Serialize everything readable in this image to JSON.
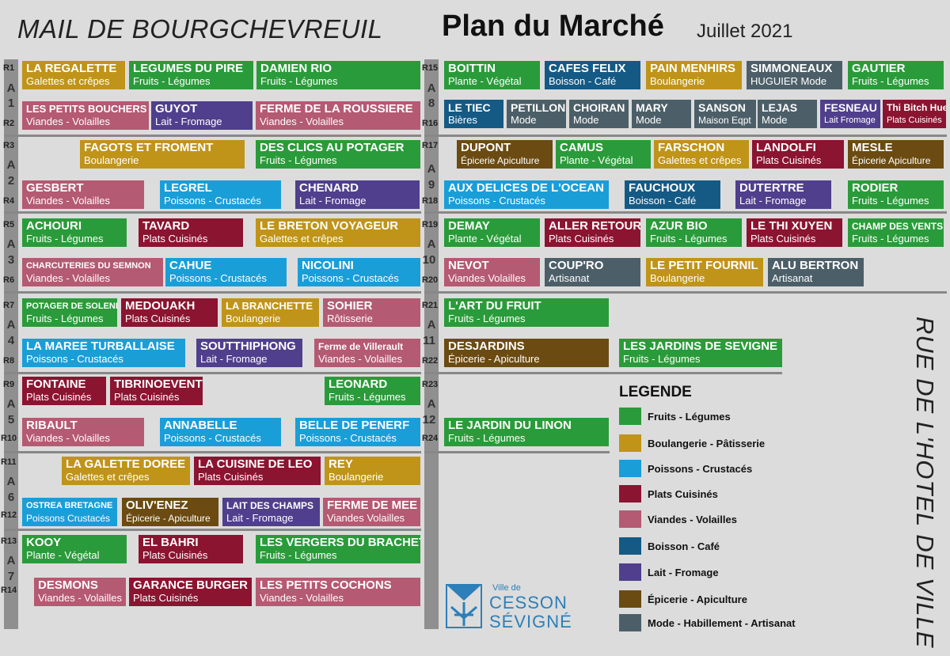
{
  "header": {
    "left": "MAIL DE BOURGCHEVREUIL",
    "title": "Plan du Marché",
    "date": "Juillet 2021"
  },
  "street": "RUE DE L'HOTEL DE VILLE",
  "logo": {
    "small": "Ville de",
    "line1": "CESSON",
    "line2": "SÉVIGNÉ"
  },
  "rows": {
    "R1": "R1",
    "R2": "R2",
    "R3": "R3",
    "R4": "R4",
    "R5": "R5",
    "R6": "R6",
    "R7": "R7",
    "R8": "R8",
    "R9": "R9",
    "R10": "R10",
    "R11": "R11",
    "R12": "R12",
    "R13": "R13",
    "R14": "R14",
    "R15": "R15",
    "R16": "R16",
    "R17": "R17",
    "R18": "R18",
    "R19": "R19",
    "R20": "R20",
    "R21": "R21",
    "R22": "R22",
    "R23": "R23",
    "R24": "R24"
  },
  "aisles": {
    "a1": "A",
    "n1": "1",
    "a2": "A",
    "n2": "2",
    "a3": "A",
    "n3": "3",
    "a4": "A",
    "n4": "4",
    "a5": "A",
    "n5": "5",
    "a6": "A",
    "n6": "6",
    "a7": "A",
    "n7": "7",
    "a8": "A",
    "n8": "8",
    "a9": "A",
    "n9": "9",
    "a10": "A",
    "n10": "10",
    "a11": "A",
    "n11": "11",
    "a12": "A",
    "n12": "12"
  },
  "stalls": {
    "regalette": {
      "name": "LA REGALETTE",
      "type": "Galettes et crêpes"
    },
    "pire": {
      "name": "LEGUMES DU PIRE",
      "type": "Fruits - Légumes"
    },
    "rio": {
      "name": "DAMIEN RIO",
      "type": "Fruits - Légumes"
    },
    "bouchers": {
      "name": "LES PETITS BOUCHERS",
      "type": "Viandes - Volailles"
    },
    "guyot": {
      "name": "GUYOT",
      "type": "Lait - Fromage"
    },
    "roussiere": {
      "name": "FERME DE LA ROUSSIERE",
      "type": "Viandes - Volailles"
    },
    "fagots": {
      "name": "FAGOTS ET FROMENT",
      "type": "Boulangerie"
    },
    "clics": {
      "name": "DES CLICS AU POTAGER",
      "type": "Fruits - Légumes"
    },
    "gesbert": {
      "name": "GESBERT",
      "type": "Viandes - Volailles"
    },
    "legrel": {
      "name": "LEGREL",
      "type": "Poissons - Crustacés"
    },
    "chenard": {
      "name": "CHENARD",
      "type": "Lait - Fromage"
    },
    "achouri": {
      "name": "ACHOURI",
      "type": "Fruits - Légumes"
    },
    "tavard": {
      "name": "TAVARD",
      "type": "Plats Cuisinés"
    },
    "breton": {
      "name": "LE BRETON VOYAGEUR",
      "type": "Galettes et crêpes"
    },
    "semnon": {
      "name": "CHARCUTERIES DU SEMNON",
      "type": "Viandes - Volailles"
    },
    "cahue": {
      "name": "CAHUE",
      "type": "Poissons - Crustacés"
    },
    "nicolini": {
      "name": "NICOLINI",
      "type": "Poissons - Crustacés"
    },
    "solenn": {
      "name": "POTAGER DE SOLENN",
      "type": "Fruits - Légumes"
    },
    "medouakh": {
      "name": "MEDOUAKH",
      "type": "Plats Cuisinés"
    },
    "branchette": {
      "name": "LA BRANCHETTE",
      "type": "Boulangerie"
    },
    "sohier": {
      "name": "SOHIER",
      "type": "Rôtisserie"
    },
    "maree": {
      "name": "LA MAREE TURBALLAISE",
      "type": "Poissons - Crustacés"
    },
    "southi": {
      "name": "SOUTTHIPHONG",
      "type": "Lait - Fromage"
    },
    "villerault": {
      "name": "Ferme de Villerault",
      "type": "Viandes - Volailles"
    },
    "fontaine": {
      "name": "FONTAINE",
      "type": "Plats Cuisinés"
    },
    "tibrino": {
      "name": "TIBRINOEVENT",
      "type": "Plats Cuisinés"
    },
    "leonard": {
      "name": "LEONARD",
      "type": "Fruits - Légumes"
    },
    "ribault": {
      "name": "RIBAULT",
      "type": "Viandes - Volailles"
    },
    "annabelle": {
      "name": "ANNABELLE",
      "type": "Poissons - Crustacés"
    },
    "penerf": {
      "name": "BELLE DE PENERF",
      "type": "Poissons - Crustacés"
    },
    "galette": {
      "name": "LA GALETTE DOREE",
      "type": "Galettes et crêpes"
    },
    "leo": {
      "name": "LA CUISINE DE LEO",
      "type": "Plats Cuisinés"
    },
    "rey": {
      "name": "REY",
      "type": "Boulangerie"
    },
    "ostrea": {
      "name": "OSTREA BRETAGNE",
      "type": "Poissons Crustacés"
    },
    "olivenez": {
      "name": "OLIV'ENEZ",
      "type": "Épicerie - Apiculture"
    },
    "champs": {
      "name": "LAIT DES CHAMPS",
      "type": "Lait - Fromage"
    },
    "mee": {
      "name": "FERME DE MEE",
      "type": "Viandes Volailles"
    },
    "kooy": {
      "name": "KOOY",
      "type": "Plante - Végétal"
    },
    "elbahri": {
      "name": "EL BAHRI",
      "type": "Plats Cuisinés"
    },
    "brachet": {
      "name": "LES VERGERS DU BRACHET",
      "type": "Fruits - Légumes"
    },
    "desmons": {
      "name": "DESMONS",
      "type": "Viandes - Volailles"
    },
    "garance": {
      "name": "GARANCE BURGER",
      "type": "Plats Cuisinés"
    },
    "cochons": {
      "name": "LES PETITS COCHONS",
      "type": "Viandes - Volailles"
    },
    "boittin": {
      "name": "BOITTIN",
      "type": "Plante - Végétal"
    },
    "felix": {
      "name": "CAFES FELIX",
      "type": "Boisson - Café"
    },
    "menhirs": {
      "name": "PAIN MENHIRS",
      "type": "Boulangerie"
    },
    "simmoneaux": {
      "name": "SIMMONEAUX",
      "type": "HUGUIER Mode"
    },
    "gautier": {
      "name": "GAUTIER",
      "type": "Fruits - Légumes"
    },
    "tiec": {
      "name": "LE TIEC",
      "type": "Bières"
    },
    "petillon": {
      "name": "PETILLON",
      "type": "Mode"
    },
    "choiran": {
      "name": "CHOIRAN",
      "type": "Mode"
    },
    "mary": {
      "name": "MARY",
      "type": "Mode"
    },
    "sanson": {
      "name": "SANSON",
      "type": "Maison Eqpt"
    },
    "lejas": {
      "name": "LEJAS",
      "type": "Mode"
    },
    "fesneau": {
      "name": "FESNEAU",
      "type": "Lait Fromage"
    },
    "thibitch": {
      "name": "Thi Bitch Hue",
      "type": "Plats Cuisinés"
    },
    "dupont": {
      "name": "DUPONT",
      "type": "Épicerie Apiculture"
    },
    "camus": {
      "name": "CAMUS",
      "type": "Plante - Végétal"
    },
    "farschon": {
      "name": "FARSCHON",
      "type": "Galettes et crêpes"
    },
    "landolfi": {
      "name": "LANDOLFI",
      "type": "Plats Cuisinés"
    },
    "mesle": {
      "name": "MESLE",
      "type": "Épicerie Apiculture"
    },
    "delices": {
      "name": "AUX DELICES DE L'OCEAN",
      "type": "Poissons - Crustacés"
    },
    "fauchoux": {
      "name": "FAUCHOUX",
      "type": "Boisson - Café"
    },
    "dutertre": {
      "name": "DUTERTRE",
      "type": "Lait - Fromage"
    },
    "rodier": {
      "name": "RODIER",
      "type": "Fruits - Légumes"
    },
    "demay": {
      "name": "DEMAY",
      "type": "Plante - Végétal"
    },
    "allerretour": {
      "name": "ALLER RETOUR",
      "type": "Plats Cuisinés"
    },
    "azur": {
      "name": "AZUR BIO",
      "type": "Fruits - Légumes"
    },
    "thixuyen": {
      "name": "LE THI XUYEN",
      "type": "Plats Cuisinés"
    },
    "champvents": {
      "name": "CHAMP DES VENTS",
      "type": "Fruits - Légumes"
    },
    "nevot": {
      "name": "NEVOT",
      "type": "Viandes Volailles"
    },
    "coupro": {
      "name": "COUP'RO",
      "type": "Artisanat"
    },
    "fournil": {
      "name": "LE PETIT FOURNIL",
      "type": "Boulangerie"
    },
    "bertron": {
      "name": "ALU BERTRON",
      "type": "Artisanat"
    },
    "artfruit": {
      "name": "L'ART DU FRUIT",
      "type": "Fruits - Légumes"
    },
    "desjardins": {
      "name": "DESJARDINS",
      "type": "Épicerie - Apiculture"
    },
    "sevigne": {
      "name": "LES JARDINS DE SEVIGNE",
      "type": "Fruits - Légumes"
    },
    "linon": {
      "name": "LE JARDIN DU LINON",
      "type": "Fruits - Légumes"
    }
  },
  "legend": {
    "title": "LEGENDE",
    "items": [
      {
        "label": "Fruits - Légumes",
        "color": "#2a9b3a"
      },
      {
        "label": "Boulangerie - Pâtisserie",
        "color": "#bf9419"
      },
      {
        "label": "Poissons - Crustacés",
        "color": "#1a9ed8"
      },
      {
        "label": "Plats Cuisinés",
        "color": "#8b1430"
      },
      {
        "label": "Viandes - Volailles",
        "color": "#b45a72"
      },
      {
        "label": "Boisson - Café",
        "color": "#155a84"
      },
      {
        "label": "Lait - Fromage",
        "color": "#4f3f8c"
      },
      {
        "label": "Épicerie - Apiculture",
        "color": "#6b4b12"
      },
      {
        "label": "Mode - Habillement - Artisanat",
        "color": "#4c5f68"
      }
    ]
  }
}
